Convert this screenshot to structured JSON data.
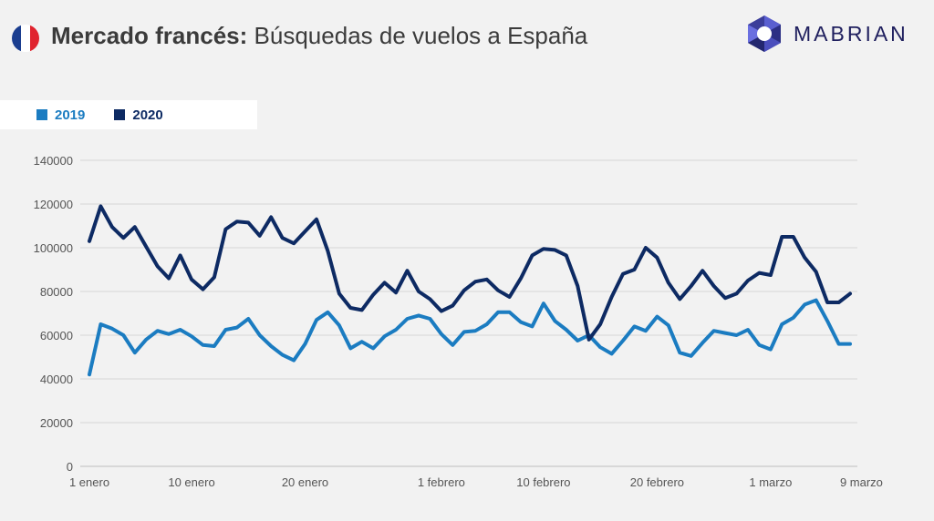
{
  "header": {
    "title_bold": "Mercado francés:",
    "title_rest": "Búsquedas de vuelos a España",
    "logo_text": "MABRIAN",
    "flag_colors": [
      "#1a3d8f",
      "#ffffff",
      "#e0232e"
    ]
  },
  "chart_data": {
    "type": "line",
    "title": "Mercado francés: Búsquedas de vuelos a España",
    "ylim": [
      0,
      140000
    ],
    "yticks": [
      0,
      20000,
      40000,
      60000,
      80000,
      100000,
      120000,
      140000
    ],
    "xticks": [
      {
        "index": 0,
        "label": "1 enero"
      },
      {
        "index": 9,
        "label": "10 enero"
      },
      {
        "index": 19,
        "label": "20 enero"
      },
      {
        "index": 31,
        "label": "1 febrero"
      },
      {
        "index": 40,
        "label": "10 febrero"
      },
      {
        "index": 50,
        "label": "20 febrero"
      },
      {
        "index": 60,
        "label": "1 marzo"
      },
      {
        "index": 68,
        "label": "9 marzo"
      }
    ],
    "legend_position": "top-left",
    "grid": true,
    "series": [
      {
        "name": "2019",
        "color": "#1b7cc1",
        "values": [
          42000,
          65000,
          63000,
          60000,
          52000,
          58000,
          62000,
          60500,
          62500,
          59500,
          55500,
          55000,
          62500,
          63500,
          67500,
          60000,
          55000,
          51000,
          48500,
          56000,
          67000,
          70500,
          64500,
          54000,
          57000,
          54000,
          59500,
          62500,
          67500,
          69000,
          67500,
          60500,
          55500,
          61500,
          62000,
          65000,
          70500,
          70500,
          66000,
          64000,
          74500,
          66500,
          62500,
          57500,
          60000,
          54500,
          51500,
          57500,
          64000,
          62000,
          68500,
          64500,
          52000,
          50500,
          56500,
          62000,
          61000,
          60000,
          62500,
          55500,
          53500,
          65000,
          68000,
          74000,
          76000,
          66500,
          56000,
          56000
        ]
      },
      {
        "name": "2020",
        "color": "#0d2a63",
        "values": [
          103000,
          119000,
          109500,
          104500,
          109500,
          100500,
          91500,
          86000,
          96500,
          85500,
          81000,
          86500,
          108500,
          112000,
          111500,
          105500,
          114000,
          104500,
          102000,
          107500,
          113000,
          98500,
          79000,
          72500,
          71500,
          78500,
          84000,
          79500,
          89500,
          80000,
          76500,
          71000,
          73500,
          80500,
          84500,
          85500,
          80500,
          77500,
          86000,
          96500,
          99500,
          99000,
          96500,
          82500,
          58000,
          65000,
          77500,
          88000,
          90000,
          100000,
          95500,
          84000,
          76500,
          82500,
          89500,
          82500,
          77000,
          79000,
          85000,
          88500,
          87500,
          105000,
          105000,
          95500,
          89000,
          75000,
          75000,
          79000
        ]
      }
    ]
  }
}
